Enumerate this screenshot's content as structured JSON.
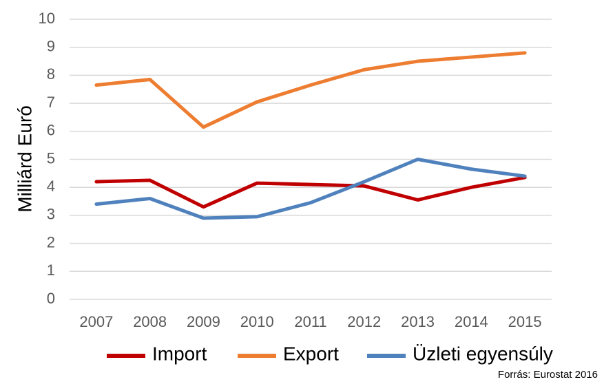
{
  "chart_data": {
    "type": "line",
    "y_label": "Milliárd Euró",
    "source": "Forrás: Eurostat 2016",
    "categories": [
      "2007",
      "2008",
      "2009",
      "2010",
      "2011",
      "2012",
      "2013",
      "2014",
      "2015"
    ],
    "series": [
      {
        "name": "Import",
        "color": "#c00000",
        "values": [
          4.2,
          4.25,
          3.3,
          4.15,
          4.1,
          4.05,
          3.55,
          4.0,
          4.35
        ]
      },
      {
        "name": "Export",
        "color": "#ed7d31",
        "values": [
          7.65,
          7.85,
          6.15,
          7.05,
          7.65,
          8.2,
          8.5,
          8.65,
          8.8
        ]
      },
      {
        "name": "Üzleti egyensúly",
        "color": "#4f81bd",
        "values": [
          3.4,
          3.6,
          2.9,
          2.95,
          3.45,
          4.2,
          5.0,
          4.65,
          4.4
        ]
      }
    ],
    "ylim": [
      0,
      10
    ],
    "yticks": [
      0,
      1,
      2,
      3,
      4,
      5,
      6,
      7,
      8,
      9,
      10
    ],
    "grid": true
  }
}
